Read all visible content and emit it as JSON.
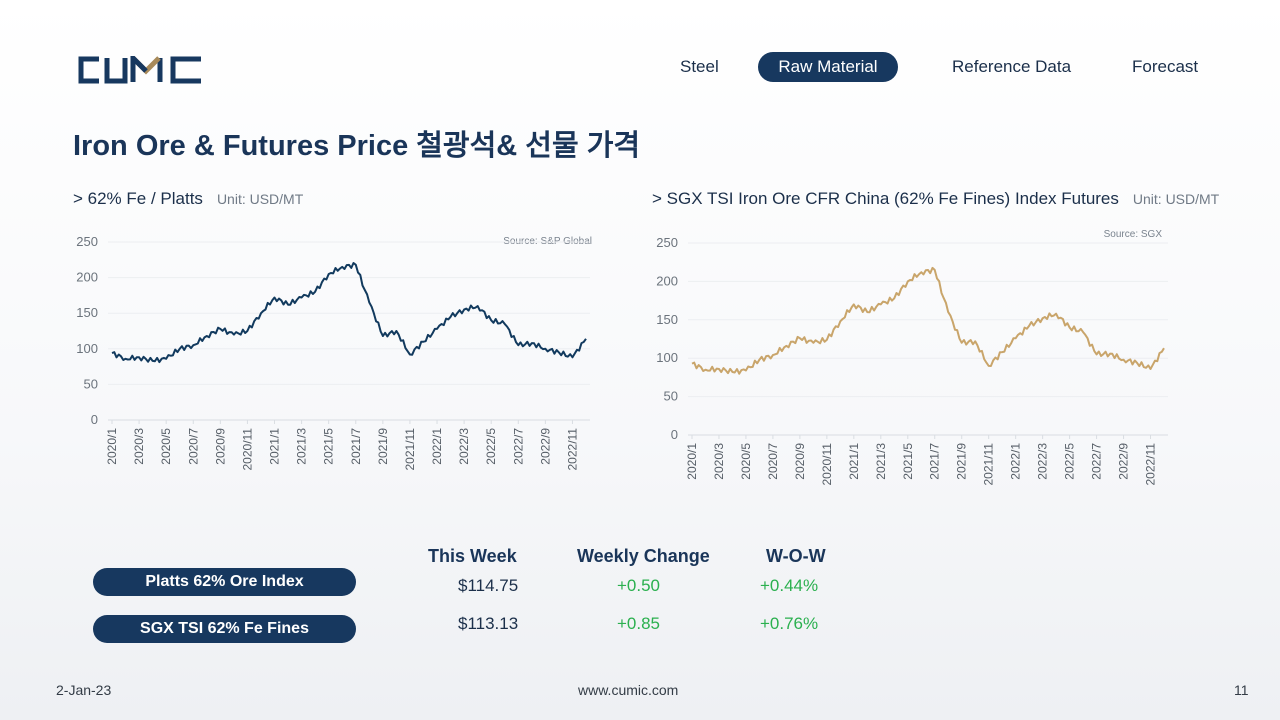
{
  "brand": {
    "logo_text": "CUMIC",
    "accent": "#a88a5a",
    "primary": "#17385f"
  },
  "nav": {
    "items": [
      {
        "label": "Steel",
        "active": false
      },
      {
        "label": "Raw Material",
        "active": true
      },
      {
        "label": "Reference Data",
        "active": false
      },
      {
        "label": "Forecast",
        "active": false
      }
    ]
  },
  "page_title": "Iron Ore & Futures Price 철광석& 선물 가격",
  "charts": [
    {
      "heading": "> 62% Fe / Platts",
      "unit": "Unit: USD/MT"
    },
    {
      "heading": "> SGX TSI Iron Ore CFR China (62% Fe Fines) Index Futures",
      "unit": "Unit: USD/MT"
    }
  ],
  "chart_data": [
    {
      "type": "line",
      "source": "Source: S&P Global",
      "color": "#123a5e",
      "ylim": [
        0,
        250
      ],
      "yticks": [
        0,
        50,
        100,
        150,
        200,
        250
      ],
      "xtick_labels": [
        "2020/1",
        "2020/3",
        "2020/5",
        "2020/7",
        "2020/9",
        "2020/11",
        "2021/1",
        "2021/3",
        "2021/5",
        "2021/7",
        "2021/9",
        "2021/11",
        "2022/1",
        "2022/3",
        "2022/5",
        "2022/7",
        "2022/9",
        "2022/11"
      ],
      "series": [
        {
          "x": [
            "2020/1",
            "2020/2",
            "2020/3",
            "2020/4",
            "2020/5",
            "2020/6",
            "2020/7",
            "2020/8",
            "2020/9",
            "2020/10",
            "2020/11",
            "2020/12",
            "2021/1",
            "2021/2",
            "2021/3",
            "2021/4",
            "2021/5",
            "2021/6",
            "2021/7",
            "2021/8",
            "2021/9",
            "2021/10",
            "2021/11",
            "2021/12",
            "2022/1",
            "2022/2",
            "2022/3",
            "2022/4",
            "2022/5",
            "2022/6",
            "2022/7",
            "2022/8",
            "2022/9",
            "2022/10",
            "2022/11",
            "2022/12"
          ],
          "values": [
            94,
            86,
            88,
            83,
            86,
            100,
            105,
            118,
            128,
            120,
            125,
            150,
            172,
            162,
            172,
            180,
            205,
            215,
            218,
            165,
            118,
            125,
            92,
            110,
            128,
            145,
            155,
            160,
            140,
            135,
            105,
            108,
            100,
            95,
            88,
            114
          ]
        }
      ]
    },
    {
      "type": "line",
      "source": "Source: SGX",
      "color": "#c9a56b",
      "ylim": [
        0,
        250
      ],
      "yticks": [
        0,
        50,
        100,
        150,
        200,
        250
      ],
      "xtick_labels": [
        "2020/1",
        "2020/3",
        "2020/5",
        "2020/7",
        "2020/9",
        "2020/11",
        "2021/1",
        "2021/3",
        "2021/5",
        "2021/7",
        "2021/9",
        "2021/11",
        "2022/1",
        "2022/3",
        "2022/5",
        "2022/7",
        "2022/9",
        "2022/11"
      ],
      "series": [
        {
          "x": [
            "2020/1",
            "2020/2",
            "2020/3",
            "2020/4",
            "2020/5",
            "2020/6",
            "2020/7",
            "2020/8",
            "2020/9",
            "2020/10",
            "2020/11",
            "2020/12",
            "2021/1",
            "2021/2",
            "2021/3",
            "2021/4",
            "2021/5",
            "2021/6",
            "2021/7",
            "2021/8",
            "2021/9",
            "2021/10",
            "2021/11",
            "2021/12",
            "2022/1",
            "2022/2",
            "2022/3",
            "2022/4",
            "2022/5",
            "2022/6",
            "2022/7",
            "2022/8",
            "2022/9",
            "2022/10",
            "2022/11",
            "2022/12"
          ],
          "values": [
            93,
            85,
            86,
            82,
            84,
            98,
            104,
            116,
            126,
            120,
            124,
            148,
            170,
            160,
            170,
            178,
            200,
            212,
            215,
            160,
            120,
            122,
            90,
            108,
            126,
            142,
            152,
            158,
            140,
            134,
            105,
            106,
            98,
            94,
            86,
            113
          ]
        }
      ]
    }
  ],
  "summary": {
    "headers": {
      "this_week": "This Week",
      "weekly_change": "Weekly Change",
      "wow": "W-O-W"
    },
    "rows": [
      {
        "name": "Platts 62% Ore Index",
        "this_week": "$114.75",
        "weekly_change": "+0.50",
        "wow": "+0.44%"
      },
      {
        "name": "SGX TSI 62% Fe Fines",
        "this_week": "$113.13",
        "weekly_change": "+0.85",
        "wow": "+0.76%"
      }
    ]
  },
  "footer": {
    "date": "2-Jan-23",
    "url": "www.cumic.com",
    "page_number": "11"
  }
}
